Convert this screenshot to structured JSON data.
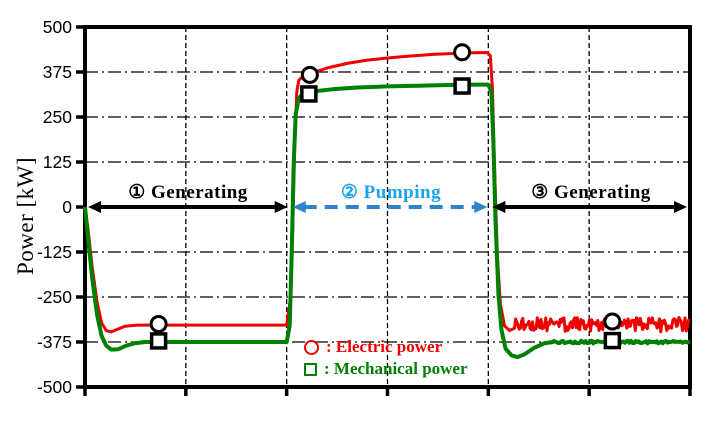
{
  "figure": {
    "background_color": "#ffffff",
    "axis_color": "#000000"
  },
  "chart_data": {
    "type": "line",
    "title": "",
    "y_axis_title": "Power [kW]",
    "xlabel": "",
    "ylim": [
      -500,
      500
    ],
    "yticks": [
      500,
      375,
      250,
      125,
      0,
      -125,
      -250,
      -375,
      -500
    ],
    "xlim": [
      0,
      6
    ],
    "x_gridlines": [
      1,
      2,
      3,
      4,
      5
    ],
    "x_ticks": [
      0,
      1,
      2,
      3,
      4,
      5,
      6
    ],
    "x_tick_labels": [],
    "grid": true,
    "legend_position": "bottom-center-inside",
    "phases": [
      {
        "label": "① Generating",
        "t_start": 0.03,
        "t_end": 2.01,
        "arrow_color": "#000000",
        "arrow_style": "solid",
        "label_color": "#000000"
      },
      {
        "label": "② Pumping",
        "t_start": 2.06,
        "t_end": 3.99,
        "arrow_color": "#2e83cc",
        "arrow_style": "dashed",
        "label_color": "#18a4f0"
      },
      {
        "label": "③ Generating",
        "t_start": 4.04,
        "t_end": 5.97,
        "arrow_color": "#000000",
        "arrow_style": "solid",
        "label_color": "#000000"
      }
    ],
    "series": [
      {
        "name": "Electric power",
        "color": "#ee0000",
        "width": 3,
        "marker_shape": "circle",
        "points": [
          [
            0,
            0
          ],
          [
            0.03,
            -60
          ],
          [
            0.07,
            -165
          ],
          [
            0.12,
            -265
          ],
          [
            0.165,
            -322
          ],
          [
            0.21,
            -343
          ],
          [
            0.26,
            -347
          ],
          [
            0.32,
            -340
          ],
          [
            0.4,
            -331
          ],
          [
            0.52,
            -328
          ],
          [
            1.0,
            -328
          ],
          [
            1.5,
            -328
          ],
          [
            2.0,
            -328
          ],
          [
            2.04,
            -250
          ],
          [
            2.06,
            -60
          ],
          [
            2.08,
            170
          ],
          [
            2.1,
            320
          ],
          [
            2.12,
            352
          ],
          [
            2.15,
            360
          ],
          [
            2.25,
            372
          ],
          [
            2.4,
            386
          ],
          [
            2.6,
            399
          ],
          [
            2.8,
            408
          ],
          [
            3.0,
            414
          ],
          [
            3.2,
            419
          ],
          [
            3.45,
            424
          ],
          [
            3.7,
            427
          ],
          [
            3.9,
            429
          ],
          [
            3.99,
            429
          ],
          [
            4.02,
            420
          ],
          [
            4.04,
            330
          ],
          [
            4.06,
            120
          ],
          [
            4.09,
            -140
          ],
          [
            4.12,
            -270
          ],
          [
            4.16,
            -330
          ],
          [
            4.21,
            -343
          ],
          [
            4.26,
            -337
          ]
        ],
        "noise_segments": [
          {
            "t0": 4.27,
            "t1": 6.0,
            "center": -327,
            "amplitude": 20,
            "step": 0.012
          }
        ],
        "markers": [
          [
            0.73,
            -325
          ],
          [
            2.23,
            367
          ],
          [
            3.74,
            430
          ],
          [
            5.23,
            -318
          ]
        ]
      },
      {
        "name": "Mechanical power",
        "color": "#008000",
        "width": 4,
        "marker_shape": "square",
        "points": [
          [
            0,
            0
          ],
          [
            0.03,
            -85
          ],
          [
            0.07,
            -195
          ],
          [
            0.12,
            -300
          ],
          [
            0.165,
            -358
          ],
          [
            0.21,
            -385
          ],
          [
            0.26,
            -396
          ],
          [
            0.33,
            -395
          ],
          [
            0.41,
            -385
          ],
          [
            0.5,
            -378
          ],
          [
            0.6,
            -375
          ],
          [
            1.2,
            -375
          ],
          [
            2.0,
            -375
          ],
          [
            2.03,
            -330
          ],
          [
            2.05,
            -130
          ],
          [
            2.07,
            120
          ],
          [
            2.09,
            258
          ],
          [
            2.12,
            302
          ],
          [
            2.15,
            311
          ],
          [
            2.27,
            321
          ],
          [
            2.45,
            327
          ],
          [
            2.7,
            332
          ],
          [
            3.0,
            335
          ],
          [
            3.3,
            337
          ],
          [
            3.6,
            339
          ],
          [
            3.9,
            340
          ],
          [
            4.0,
            340
          ],
          [
            4.03,
            320
          ],
          [
            4.05,
            180
          ],
          [
            4.07,
            -30
          ],
          [
            4.1,
            -240
          ],
          [
            4.13,
            -340
          ],
          [
            4.17,
            -393
          ],
          [
            4.23,
            -412
          ],
          [
            4.29,
            -417
          ],
          [
            4.36,
            -409
          ],
          [
            4.45,
            -392
          ],
          [
            4.55,
            -379
          ],
          [
            4.64,
            -375
          ]
        ],
        "noise_segments": [
          {
            "t0": 4.65,
            "t1": 6.0,
            "center": -375.5,
            "amplitude": 4,
            "step": 0.015
          }
        ],
        "markers": [
          [
            0.73,
            -372
          ],
          [
            2.22,
            314
          ],
          [
            3.74,
            336
          ],
          [
            5.23,
            -371
          ]
        ]
      }
    ],
    "legend": [
      {
        "marker": "circle",
        "color": "#ee0000",
        "label": ": Electric power"
      },
      {
        "marker": "square",
        "color": "#008000",
        "label": ": Mechanical power"
      }
    ]
  }
}
